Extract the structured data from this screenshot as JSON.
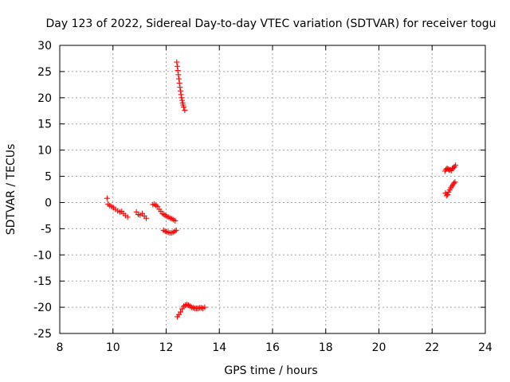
{
  "chart_data": {
    "type": "scatter",
    "title": "Day 123 of 2022, Sidereal Day-to-day VTEC variation (SDTVAR) for receiver togu",
    "xlabel": "GPS time / hours",
    "ylabel": "SDTVAR / TECUs",
    "xlim": [
      8,
      24
    ],
    "ylim": [
      -25,
      30
    ],
    "xticks": [
      8,
      10,
      12,
      14,
      16,
      18,
      20,
      22,
      24
    ],
    "yticks": [
      -25,
      -20,
      -15,
      -10,
      -5,
      0,
      5,
      10,
      15,
      20,
      25,
      30
    ],
    "grid": true,
    "marker": "plus",
    "color": "#ff0000",
    "series": [
      {
        "points": [
          [
            9.78,
            0.8
          ],
          [
            9.82,
            -0.3
          ],
          [
            9.88,
            -0.6
          ],
          [
            9.95,
            -0.8
          ],
          [
            10.02,
            -1.0
          ],
          [
            10.1,
            -1.3
          ],
          [
            10.18,
            -1.6
          ],
          [
            10.26,
            -1.8
          ],
          [
            10.33,
            -1.7
          ],
          [
            10.4,
            -2.1
          ],
          [
            10.47,
            -2.5
          ],
          [
            10.55,
            -2.8
          ],
          [
            10.88,
            -1.8
          ],
          [
            10.95,
            -2.3
          ],
          [
            11.02,
            -2.4
          ],
          [
            11.1,
            -2.1
          ],
          [
            11.18,
            -2.6
          ],
          [
            11.25,
            -3.0
          ],
          [
            11.5,
            -0.4
          ],
          [
            11.56,
            -0.3
          ],
          [
            11.62,
            -0.6
          ],
          [
            11.68,
            -0.8
          ],
          [
            11.74,
            -1.3
          ],
          [
            11.8,
            -1.7
          ],
          [
            11.86,
            -2.1
          ],
          [
            11.92,
            -2.3
          ],
          [
            11.98,
            -2.5
          ],
          [
            12.04,
            -2.7
          ],
          [
            12.1,
            -2.8
          ],
          [
            12.16,
            -3.0
          ],
          [
            12.22,
            -3.1
          ],
          [
            12.28,
            -3.3
          ],
          [
            12.34,
            -3.5
          ],
          [
            11.9,
            -5.3
          ],
          [
            11.96,
            -5.5
          ],
          [
            12.02,
            -5.6
          ],
          [
            12.08,
            -5.7
          ],
          [
            12.14,
            -5.8
          ],
          [
            12.2,
            -5.8
          ],
          [
            12.26,
            -5.7
          ],
          [
            12.32,
            -5.5
          ],
          [
            12.38,
            -5.3
          ],
          [
            12.4,
            26.8
          ],
          [
            12.42,
            26.0
          ],
          [
            12.44,
            25.2
          ],
          [
            12.46,
            24.4
          ],
          [
            12.48,
            23.6
          ],
          [
            12.5,
            22.8
          ],
          [
            12.52,
            22.0
          ],
          [
            12.54,
            21.3
          ],
          [
            12.56,
            20.6
          ],
          [
            12.58,
            20.0
          ],
          [
            12.6,
            19.5
          ],
          [
            12.62,
            19.0
          ],
          [
            12.64,
            18.6
          ],
          [
            12.66,
            18.2
          ],
          [
            12.7,
            17.6
          ],
          [
            12.42,
            -21.8
          ],
          [
            12.48,
            -21.4
          ],
          [
            12.54,
            -20.9
          ],
          [
            12.6,
            -20.3
          ],
          [
            12.66,
            -19.8
          ],
          [
            12.72,
            -19.6
          ],
          [
            12.78,
            -19.5
          ],
          [
            12.84,
            -19.6
          ],
          [
            12.9,
            -19.8
          ],
          [
            12.96,
            -20.0
          ],
          [
            13.02,
            -20.1
          ],
          [
            13.08,
            -20.2
          ],
          [
            13.14,
            -20.2
          ],
          [
            13.2,
            -20.2
          ],
          [
            13.26,
            -20.1
          ],
          [
            13.32,
            -20.1
          ],
          [
            13.38,
            -20.2
          ],
          [
            13.45,
            -20.0
          ],
          [
            22.48,
            6.0
          ],
          [
            22.52,
            6.3
          ],
          [
            22.56,
            6.5
          ],
          [
            22.6,
            6.4
          ],
          [
            22.64,
            6.2
          ],
          [
            22.68,
            6.3
          ],
          [
            22.72,
            6.1
          ],
          [
            22.76,
            6.5
          ],
          [
            22.8,
            6.6
          ],
          [
            22.84,
            6.8
          ],
          [
            22.88,
            7.1
          ],
          [
            22.5,
            1.8
          ],
          [
            22.54,
            1.3
          ],
          [
            22.58,
            1.5
          ],
          [
            22.62,
            2.0
          ],
          [
            22.66,
            2.4
          ],
          [
            22.7,
            2.8
          ],
          [
            22.74,
            3.1
          ],
          [
            22.78,
            3.4
          ],
          [
            22.82,
            3.7
          ],
          [
            22.86,
            3.9
          ]
        ]
      }
    ]
  }
}
